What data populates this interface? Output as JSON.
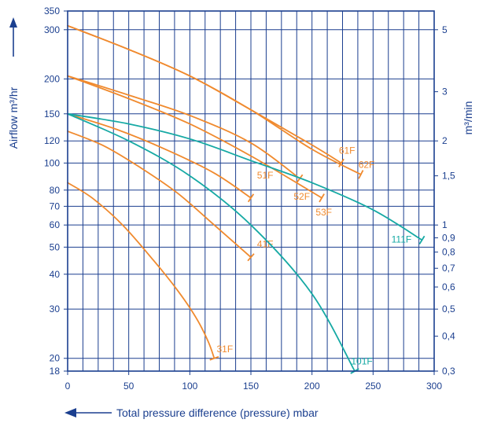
{
  "colors": {
    "frame": "#1b3f8f",
    "grid": "#1b3f8f",
    "orange": "#f08a2e",
    "teal": "#16a9a4"
  },
  "chart_data": {
    "type": "line",
    "xlabel": "Total pressure difference (pressure) mbar",
    "ylabel_left": "Airflow m³/hr",
    "ylabel_right": "m³/min",
    "x_ticks": [
      "0",
      "50",
      "100",
      "150",
      "200",
      "250",
      "300"
    ],
    "xlim": [
      0,
      300
    ],
    "ylim": [
      18,
      350
    ],
    "y_scale": "log",
    "y_ticks_left": [
      "18",
      "20",
      "30",
      "40",
      "50",
      "60",
      "70",
      "80",
      "100",
      "120",
      "150",
      "200",
      "300",
      "350"
    ],
    "y_ticks_right": [
      "0,3",
      "0,4",
      "0,5",
      "0,6",
      "0,7",
      "0,8",
      "0,9",
      "1",
      "1,5",
      "2",
      "3",
      "5"
    ],
    "grid": true,
    "series": [
      {
        "name": "31F",
        "color": "orange",
        "x": [
          0,
          20,
          45,
          70,
          90,
          105,
          115,
          120
        ],
        "y": [
          85,
          75,
          60,
          45,
          35,
          28,
          23,
          20
        ],
        "label_x": 122,
        "label_y": 21
      },
      {
        "name": "41F",
        "color": "orange",
        "x": [
          0,
          30,
          60,
          90,
          120,
          150
        ],
        "y": [
          130,
          115,
          96,
          78,
          60,
          46
        ],
        "label_x": 155,
        "label_y": 50
      },
      {
        "name": "51F",
        "color": "orange",
        "x": [
          0,
          40,
          80,
          120,
          150
        ],
        "y": [
          150,
          132,
          112,
          92,
          75
        ],
        "label_x": 155,
        "label_y": 88
      },
      {
        "name": "52F",
        "color": "orange",
        "x": [
          0,
          50,
          100,
          150,
          190
        ],
        "y": [
          205,
          175,
          148,
          118,
          88
        ],
        "label_x": 185,
        "label_y": 74
      },
      {
        "name": "53F",
        "color": "orange",
        "x": [
          0,
          50,
          100,
          150,
          208
        ],
        "y": [
          205,
          170,
          138,
          106,
          75
        ],
        "label_x": 203,
        "label_y": 65
      },
      {
        "name": "61F",
        "color": "orange",
        "x": [
          0,
          50,
          100,
          150,
          200,
          224
        ],
        "y": [
          310,
          255,
          205,
          155,
          116,
          100
        ],
        "label_x": 222,
        "label_y": 108
      },
      {
        "name": "62F",
        "color": "orange",
        "x": [
          0,
          50,
          100,
          150,
          200,
          240
        ],
        "y": [
          310,
          255,
          205,
          155,
          112,
          91
        ],
        "label_x": 238,
        "label_y": 96
      },
      {
        "name": "101F",
        "color": "teal",
        "x": [
          0,
          50,
          100,
          150,
          200,
          235
        ],
        "y": [
          150,
          120,
          90,
          60,
          34,
          18
        ],
        "label_x": 232,
        "label_y": 19
      },
      {
        "name": "111F",
        "color": "teal",
        "x": [
          0,
          50,
          100,
          150,
          200,
          250,
          290
        ],
        "y": [
          150,
          138,
          122,
          102,
          85,
          68,
          53
        ],
        "label_x": 265,
        "label_y": 52
      }
    ]
  }
}
